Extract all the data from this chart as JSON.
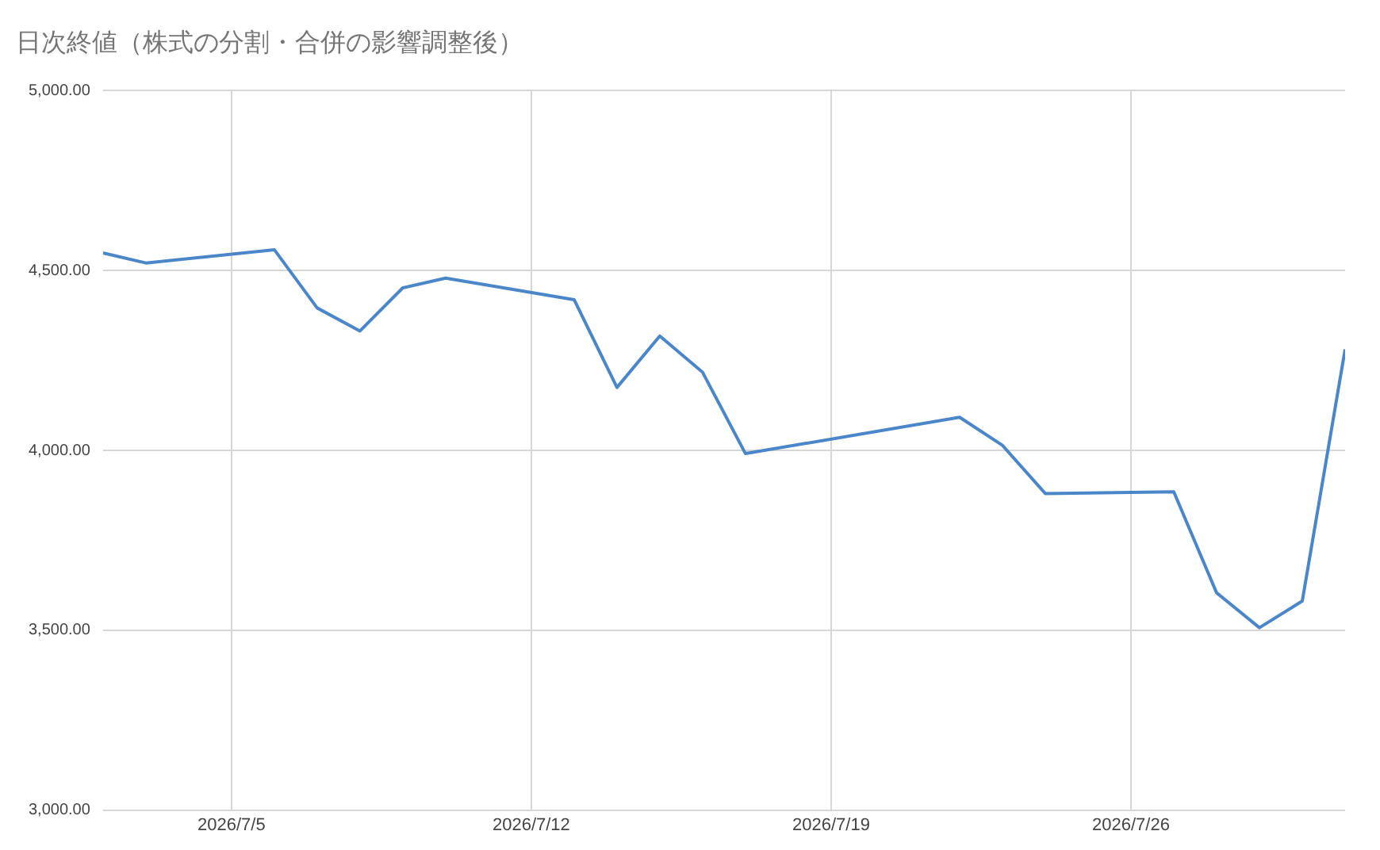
{
  "chart_data": {
    "type": "line",
    "title": "日次終値（株式の分割・合併の影響調整後）",
    "x": [
      "2026-07-02",
      "2026-07-03",
      "2026-07-06",
      "2026-07-07",
      "2026-07-08",
      "2026-07-09",
      "2026-07-10",
      "2026-07-13",
      "2026-07-14",
      "2026-07-15",
      "2026-07-16",
      "2026-07-17",
      "2026-07-22",
      "2026-07-23",
      "2026-07-24",
      "2026-07-27",
      "2026-07-28",
      "2026-07-29",
      "2026-07-30",
      "2026-07-31"
    ],
    "series": [
      {
        "color": "#4a86c8",
        "values": [
          4549,
          4521,
          4558,
          4396,
          4332,
          4452,
          4479,
          4419,
          4175,
          4318,
          4217,
          3991,
          4092,
          4014,
          3880,
          3885,
          3604,
          3507,
          3581,
          4281
        ]
      }
    ],
    "xlim": [
      "2026-07-02",
      "2026-07-31"
    ],
    "xticks": [
      {
        "value": "2026-07-05",
        "label": "2026/7/5"
      },
      {
        "value": "2026-07-12",
        "label": "2026/7/12"
      },
      {
        "value": "2026-07-19",
        "label": "2026/7/19"
      },
      {
        "value": "2026-07-26",
        "label": "2026/7/26"
      }
    ],
    "ylim": [
      3000,
      5000
    ],
    "yticks": [
      {
        "value": 3000,
        "label": "3,000.00"
      },
      {
        "value": 3500,
        "label": "3,500.00"
      },
      {
        "value": 4000,
        "label": "4,000.00"
      },
      {
        "value": 4500,
        "label": "4,500.00"
      },
      {
        "value": 5000,
        "label": "5,000.00"
      }
    ],
    "grid": true,
    "marker": "none",
    "line_style": "solid"
  }
}
